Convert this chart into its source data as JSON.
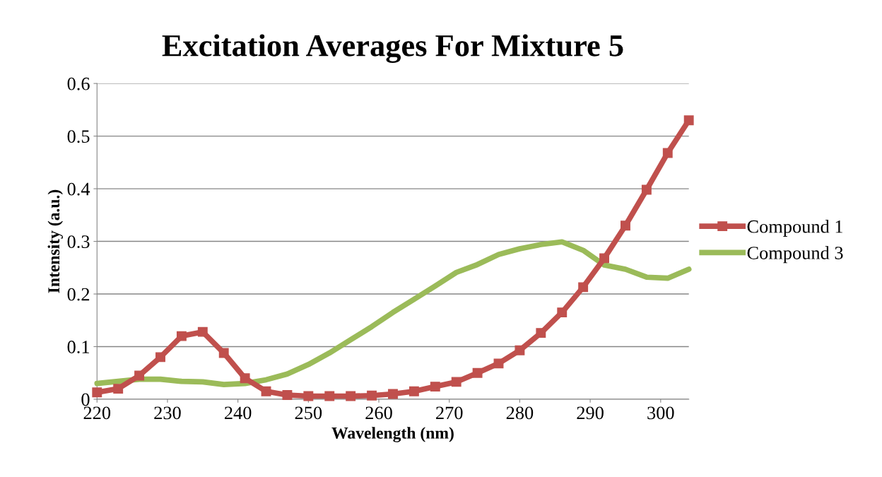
{
  "chart_data": {
    "type": "line",
    "title": "Excitation Averages For Mixture 5",
    "xlabel": "Wavelength (nm)",
    "ylabel": "Intensity (a.u.)",
    "x": [
      220,
      223,
      226,
      229,
      232,
      235,
      238,
      241,
      244,
      247,
      250,
      253,
      256,
      259,
      262,
      265,
      268,
      271,
      274,
      277,
      280,
      283,
      286,
      289,
      292,
      295,
      298,
      301,
      304
    ],
    "series": [
      {
        "name": "Compound 1",
        "color": "#c0504d",
        "marker": "square",
        "values": [
          0.013,
          0.02,
          0.045,
          0.08,
          0.12,
          0.128,
          0.088,
          0.04,
          0.015,
          0.008,
          0.006,
          0.006,
          0.006,
          0.007,
          0.01,
          0.015,
          0.024,
          0.033,
          0.05,
          0.068,
          0.093,
          0.126,
          0.165,
          0.213,
          0.268,
          0.33,
          0.398,
          0.468,
          0.53
        ]
      },
      {
        "name": "Compound 3",
        "color": "#9bbb59",
        "marker": "none",
        "values": [
          0.03,
          0.034,
          0.038,
          0.038,
          0.034,
          0.033,
          0.028,
          0.03,
          0.037,
          0.048,
          0.066,
          0.088,
          0.113,
          0.138,
          0.165,
          0.19,
          0.215,
          0.241,
          0.256,
          0.275,
          0.286,
          0.294,
          0.299,
          0.283,
          0.255,
          0.247,
          0.232,
          0.23,
          0.247
        ]
      }
    ],
    "xlim": [
      220,
      304
    ],
    "xticks": [
      220,
      230,
      240,
      250,
      260,
      270,
      280,
      290,
      300
    ],
    "ylim": [
      0,
      0.6
    ],
    "yticks": [
      0,
      0.1,
      0.2,
      0.3,
      0.4,
      0.5,
      0.6
    ],
    "grid": "y",
    "legend": "right",
    "line_style": "solid"
  }
}
